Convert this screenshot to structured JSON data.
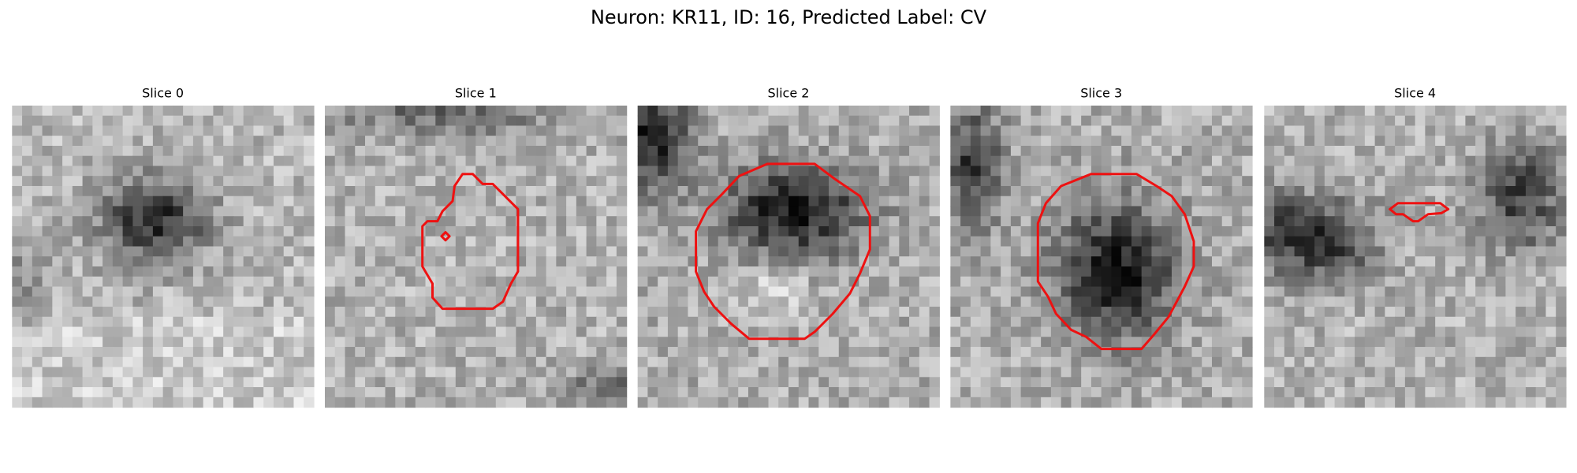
{
  "title": "Neuron: KR11, ID: 16, Predicted Label: CV",
  "panels": [
    {
      "title": "Slice 0"
    },
    {
      "title": "Slice 1"
    },
    {
      "title": "Slice 2"
    },
    {
      "title": "Slice 3"
    },
    {
      "title": "Slice 4"
    }
  ]
}
